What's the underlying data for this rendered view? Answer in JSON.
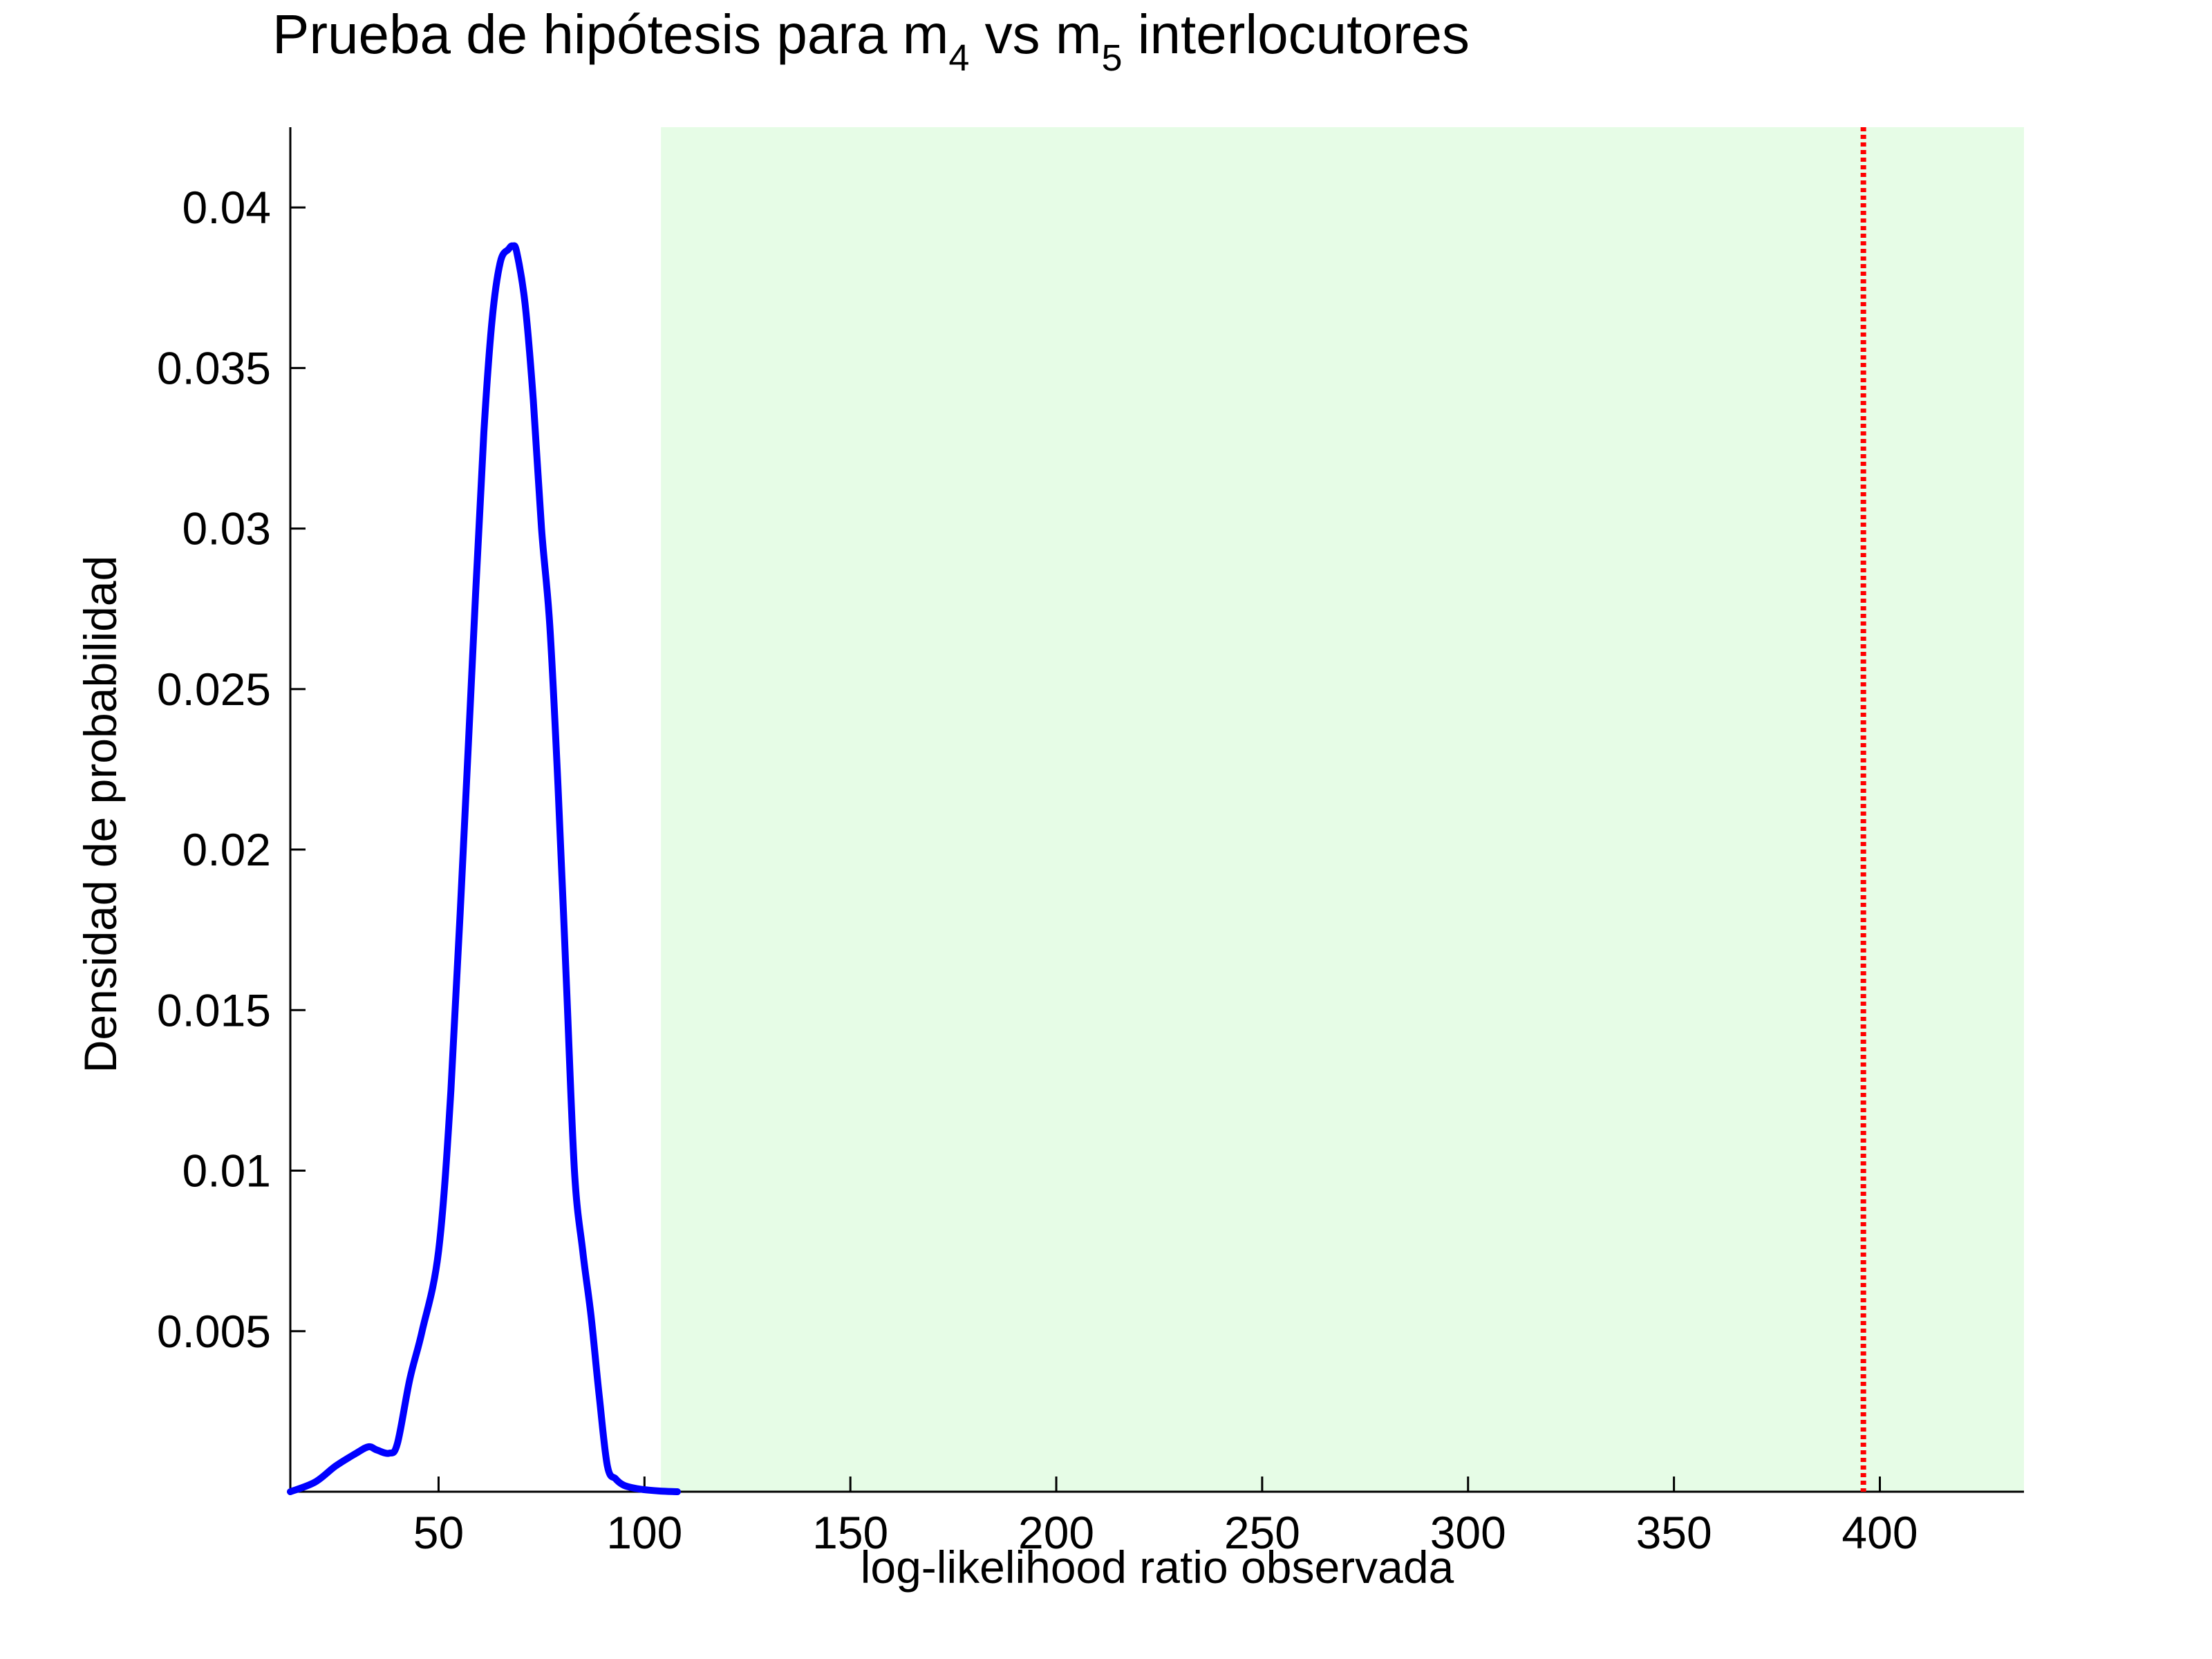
{
  "chart_data": {
    "type": "line",
    "title": {
      "prefix": "Prueba de hipótesis para m",
      "sub1": "4",
      "middle": " vs m",
      "sub2": "5",
      "suffix": " interlocutores"
    },
    "xlabel": "log-likelihood ratio observada",
    "ylabel": "Densidad de probabilidad",
    "xlim": [
      14,
      435
    ],
    "ylim": [
      0,
      0.0425
    ],
    "x_ticks": [
      50,
      100,
      150,
      200,
      250,
      300,
      350,
      400
    ],
    "x_tick_labels": [
      "50",
      "100",
      "150",
      "200",
      "250",
      "300",
      "350",
      "400"
    ],
    "y_ticks": [
      0.005,
      0.01,
      0.015,
      0.02,
      0.025,
      0.03,
      0.035,
      0.04
    ],
    "y_tick_labels": [
      "0.005",
      "0.01",
      "0.015",
      "0.02",
      "0.025",
      "0.03",
      "0.035",
      "0.04"
    ],
    "grid": false,
    "rejection_region": {
      "x_start": 104,
      "x_end": 435,
      "color": "#e6fce6"
    },
    "observed_value": {
      "x": 396,
      "color": "#ff0000"
    },
    "series": [
      {
        "color": "#0000ff",
        "x": [
          14,
          20,
          25,
          30,
          33,
          35,
          38,
          40,
          43,
          46,
          50,
          53,
          56,
          59,
          61,
          63,
          65,
          67,
          68,
          69,
          71,
          73,
          75,
          77,
          79,
          81,
          83,
          85,
          87,
          89,
          91,
          93,
          95,
          98,
          101,
          104,
          108
        ],
        "values": [
          0.0,
          0.0003,
          0.0008,
          0.0012,
          0.0014,
          0.0013,
          0.0012,
          0.0015,
          0.0035,
          0.005,
          0.0075,
          0.0125,
          0.02,
          0.028,
          0.033,
          0.0365,
          0.0383,
          0.0387,
          0.0388,
          0.0386,
          0.037,
          0.034,
          0.03,
          0.027,
          0.022,
          0.016,
          0.01,
          0.0075,
          0.0055,
          0.003,
          0.0008,
          0.0004,
          0.0002,
          0.0001,
          5e-05,
          2e-05,
          0.0
        ]
      }
    ]
  }
}
